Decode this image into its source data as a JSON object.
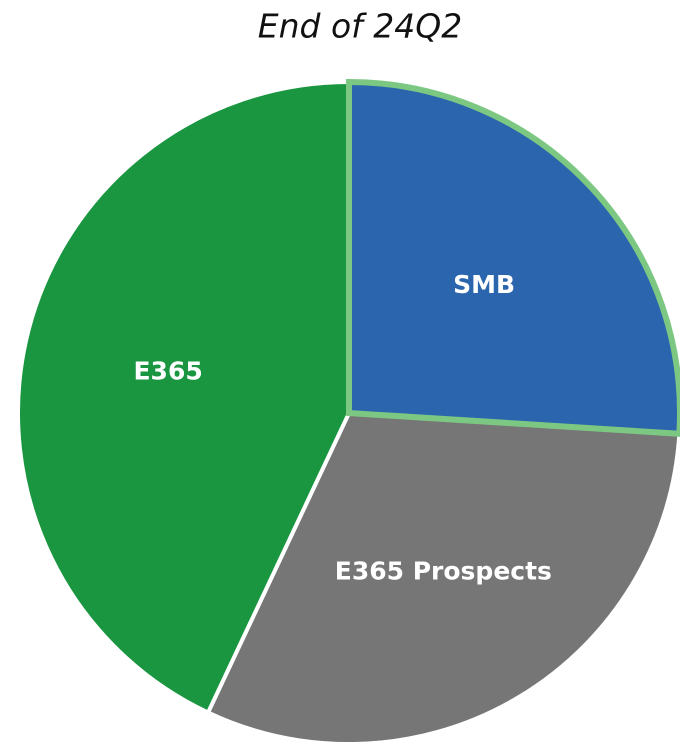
{
  "chart_data": {
    "type": "pie",
    "title": "End of 24Q2",
    "categories": [
      "SMB",
      "E365 Prospects",
      "E365"
    ],
    "values": [
      26,
      31,
      43
    ],
    "colors": [
      "#2a65ad",
      "#767676",
      "#1a9641"
    ],
    "outline_colors": [
      "#7cc883",
      "#ffffff",
      "#ffffff"
    ],
    "start_angle": 0,
    "direction": "clockwise"
  }
}
